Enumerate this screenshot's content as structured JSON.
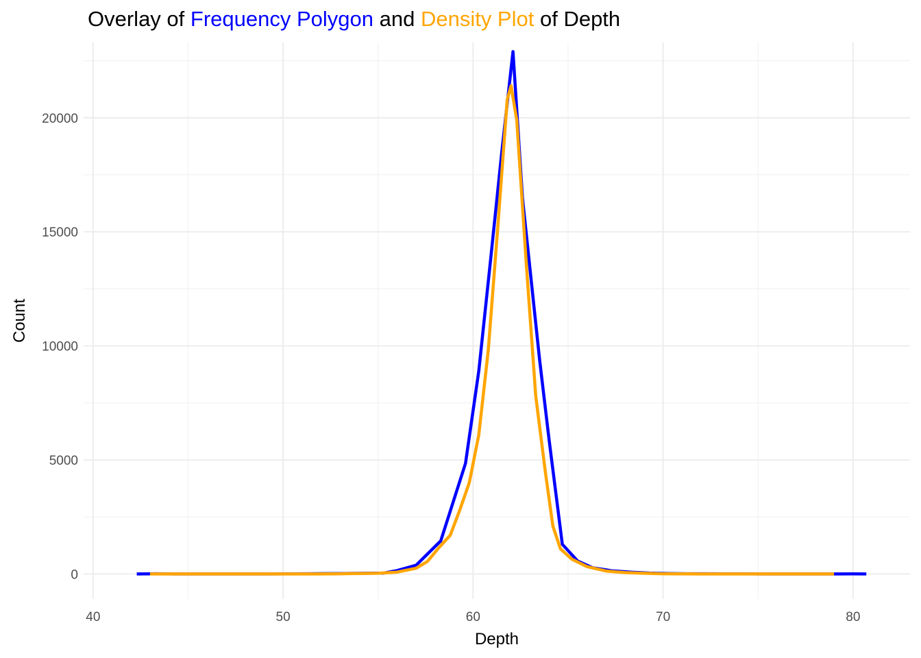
{
  "title": {
    "segments": [
      {
        "text": "Overlay of ",
        "color": "#000000"
      },
      {
        "text": "Frequency Polygon",
        "color": "#0000FF"
      },
      {
        "text": " and ",
        "color": "#000000"
      },
      {
        "text": "Density Plot",
        "color": "#FFA500"
      },
      {
        "text": " of Depth",
        "color": "#000000"
      }
    ]
  },
  "chart_data": {
    "type": "line",
    "xlabel": "Depth",
    "ylabel": "Count",
    "xlim": [
      39.5,
      83
    ],
    "ylim": [
      -1100,
      23300
    ],
    "x_ticks": [
      40,
      50,
      60,
      70,
      80
    ],
    "x_minor_ticks": [
      45,
      55,
      65,
      75
    ],
    "y_ticks": [
      0,
      5000,
      10000,
      15000,
      20000
    ],
    "y_minor_ticks": [
      2500,
      7500,
      12500,
      17500,
      22500
    ],
    "grid": true,
    "series": [
      {
        "role": "frequency-polygon",
        "color": "#0000FF",
        "points": [
          [
            42.3,
            0
          ],
          [
            43.3,
            10
          ],
          [
            44.3,
            0
          ],
          [
            45.3,
            0
          ],
          [
            46.3,
            0
          ],
          [
            47.3,
            0
          ],
          [
            48.3,
            0
          ],
          [
            49.3,
            0
          ],
          [
            50.3,
            5
          ],
          [
            51.3,
            10
          ],
          [
            52.3,
            15
          ],
          [
            53.3,
            20
          ],
          [
            54.3,
            30
          ],
          [
            55.3,
            40
          ],
          [
            56.0,
            150
          ],
          [
            57.0,
            380
          ],
          [
            58.3,
            1450
          ],
          [
            59.6,
            4850
          ],
          [
            60.3,
            8900
          ],
          [
            60.9,
            13600
          ],
          [
            61.5,
            18400
          ],
          [
            62.1,
            22900
          ],
          [
            62.6,
            16500
          ],
          [
            63.5,
            9400
          ],
          [
            64.0,
            5900
          ],
          [
            64.7,
            1300
          ],
          [
            65.5,
            570
          ],
          [
            66.3,
            270
          ],
          [
            67.3,
            140
          ],
          [
            68.3,
            80
          ],
          [
            69.3,
            40
          ],
          [
            70.3,
            20
          ],
          [
            71.3,
            10
          ],
          [
            72.3,
            10
          ],
          [
            73.3,
            5
          ],
          [
            74.3,
            5
          ],
          [
            75.3,
            0
          ],
          [
            76.3,
            0
          ],
          [
            77.3,
            0
          ],
          [
            78.3,
            0
          ],
          [
            79.0,
            0
          ],
          [
            80.0,
            5
          ],
          [
            80.7,
            0
          ]
        ]
      },
      {
        "role": "density-plot",
        "color": "#FFA500",
        "points": [
          [
            43.0,
            0
          ],
          [
            44.0,
            0
          ],
          [
            45.0,
            0
          ],
          [
            46.0,
            0
          ],
          [
            47.0,
            0
          ],
          [
            48.0,
            0
          ],
          [
            49.0,
            0
          ],
          [
            50.0,
            0
          ],
          [
            51.0,
            0
          ],
          [
            52.0,
            0
          ],
          [
            53.0,
            10
          ],
          [
            54.0,
            20
          ],
          [
            55.0,
            30
          ],
          [
            56.0,
            80
          ],
          [
            57.0,
            250
          ],
          [
            57.6,
            550
          ],
          [
            58.2,
            1150
          ],
          [
            58.8,
            1700
          ],
          [
            59.3,
            2800
          ],
          [
            59.8,
            4000
          ],
          [
            60.3,
            6100
          ],
          [
            60.8,
            9800
          ],
          [
            61.3,
            15200
          ],
          [
            61.8,
            20800
          ],
          [
            62.0,
            21400
          ],
          [
            62.3,
            19900
          ],
          [
            62.8,
            13600
          ],
          [
            63.3,
            7800
          ],
          [
            63.8,
            4500
          ],
          [
            64.2,
            2100
          ],
          [
            64.6,
            1100
          ],
          [
            65.2,
            650
          ],
          [
            66.0,
            320
          ],
          [
            67.0,
            130
          ],
          [
            68.0,
            60
          ],
          [
            69.0,
            30
          ],
          [
            70.0,
            10
          ],
          [
            71.0,
            5
          ],
          [
            72.0,
            0
          ],
          [
            73.0,
            0
          ],
          [
            74.0,
            0
          ],
          [
            75.0,
            0
          ],
          [
            76.0,
            0
          ],
          [
            77.0,
            0
          ],
          [
            78.0,
            0
          ],
          [
            79.0,
            0
          ]
        ]
      }
    ]
  }
}
